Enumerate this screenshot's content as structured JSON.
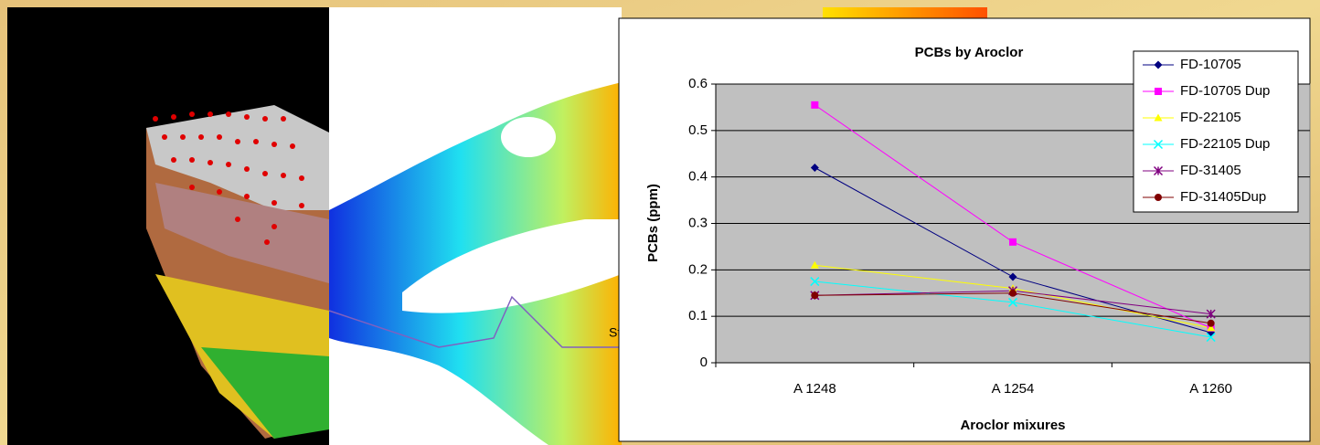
{
  "chart_data": {
    "type": "line",
    "title": "PCBs by Aroclor",
    "x_label": "Aroclor mixures",
    "y_label": "PCBs (ppm)",
    "categories": [
      "A 1248",
      "A 1254",
      "A 1260"
    ],
    "series": [
      {
        "name": "FD-10705",
        "color": "#000080",
        "marker": "diamond",
        "values": [
          0.42,
          0.185,
          0.065
        ]
      },
      {
        "name": "FD-10705 Dup",
        "color": "#ff00ff",
        "marker": "square",
        "values": [
          0.555,
          0.26,
          0.075
        ]
      },
      {
        "name": "FD-22105",
        "color": "#ffff00",
        "marker": "triangle",
        "values": [
          0.21,
          0.16,
          0.075
        ]
      },
      {
        "name": "FD-22105 Dup",
        "color": "#00ffff",
        "marker": "x",
        "values": [
          0.175,
          0.13,
          0.055
        ]
      },
      {
        "name": "FD-31405",
        "color": "#800080",
        "marker": "star",
        "values": [
          0.145,
          0.155,
          0.105
        ]
      },
      {
        "name": "FD-31405Dup",
        "color": "#800000",
        "marker": "circle",
        "values": [
          0.145,
          0.15,
          0.085
        ]
      }
    ],
    "ylim": [
      0,
      0.6
    ],
    "yticks": [
      0,
      0.1,
      0.2,
      0.3,
      0.4,
      0.5,
      0.6
    ],
    "grid": true,
    "legend": "top-right"
  },
  "map": {
    "label": "St."
  }
}
